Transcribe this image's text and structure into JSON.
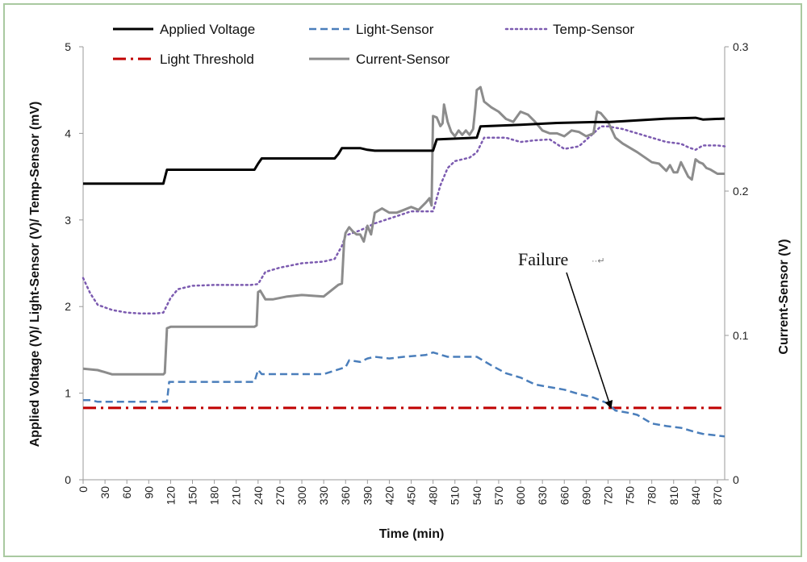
{
  "chart_data": {
    "type": "line",
    "title": "",
    "xlabel": "Time (min)",
    "ylabel_left": "Applied Voltage (V)/ Light-Sensor (V)/ Temp-Sensor (mV)",
    "ylabel_right": "Current-Sensor (V)",
    "xlim": [
      0,
      880
    ],
    "ylim_left": [
      0,
      5
    ],
    "ylim_right": [
      0,
      0.3
    ],
    "x_ticks": [
      "0",
      "30",
      "60",
      "90",
      "120",
      "150",
      "180",
      "210",
      "240",
      "270",
      "300",
      "330",
      "360",
      "390",
      "420",
      "450",
      "480",
      "510",
      "540",
      "570",
      "600",
      "630",
      "660",
      "690",
      "720",
      "750",
      "780",
      "810",
      "840",
      "870"
    ],
    "y_ticks_left": [
      "0",
      "1",
      "2",
      "3",
      "4",
      "5"
    ],
    "y_ticks_right": [
      "0",
      "0.1",
      "0.2",
      "0.3"
    ],
    "legend": [
      "Applied Voltage",
      "Light-Sensor",
      "Temp-Sensor",
      "Light Threshold",
      "Current-Sensor"
    ],
    "series": [
      {
        "name": "Applied Voltage",
        "axis": "left",
        "color": "#000000",
        "style": "solid",
        "x": [
          0,
          110,
          115,
          120,
          235,
          240,
          245,
          250,
          345,
          350,
          355,
          360,
          380,
          390,
          400,
          480,
          485,
          540,
          545,
          600,
          650,
          700,
          720,
          740,
          800,
          840,
          850,
          880
        ],
        "y": [
          3.42,
          3.42,
          3.58,
          3.58,
          3.58,
          3.65,
          3.71,
          3.71,
          3.71,
          3.76,
          3.83,
          3.83,
          3.83,
          3.81,
          3.8,
          3.8,
          3.93,
          3.95,
          4.08,
          4.1,
          4.12,
          4.13,
          4.13,
          4.14,
          4.17,
          4.18,
          4.16,
          4.17
        ]
      },
      {
        "name": "Light-Sensor",
        "axis": "left",
        "color": "#4a7ebb",
        "style": "dashed",
        "x": [
          0,
          10,
          20,
          115,
          118,
          130,
          235,
          240,
          245,
          260,
          300,
          330,
          360,
          365,
          380,
          390,
          400,
          420,
          440,
          470,
          480,
          500,
          540,
          560,
          580,
          600,
          620,
          640,
          660,
          680,
          700,
          720,
          730,
          750,
          760,
          770,
          780,
          800,
          820,
          840,
          850,
          870,
          880
        ],
        "y": [
          0.92,
          0.92,
          0.9,
          0.9,
          1.13,
          1.13,
          1.13,
          1.27,
          1.22,
          1.22,
          1.22,
          1.22,
          1.3,
          1.38,
          1.36,
          1.4,
          1.42,
          1.4,
          1.42,
          1.44,
          1.47,
          1.42,
          1.42,
          1.32,
          1.23,
          1.18,
          1.1,
          1.07,
          1.04,
          0.99,
          0.95,
          0.88,
          0.8,
          0.77,
          0.75,
          0.7,
          0.65,
          0.62,
          0.6,
          0.55,
          0.53,
          0.51,
          0.5
        ]
      },
      {
        "name": "Temp-Sensor",
        "axis": "left",
        "color": "#7c5bb0",
        "style": "dotted",
        "x": [
          0,
          10,
          20,
          40,
          60,
          80,
          100,
          110,
          120,
          130,
          150,
          180,
          200,
          230,
          240,
          250,
          270,
          300,
          330,
          345,
          355,
          360,
          380,
          400,
          450,
          480,
          490,
          500,
          510,
          530,
          540,
          550,
          580,
          600,
          620,
          640,
          660,
          680,
          700,
          710,
          720,
          740,
          760,
          780,
          800,
          820,
          830,
          840,
          850,
          870,
          880
        ],
        "y": [
          2.33,
          2.15,
          2.02,
          1.96,
          1.93,
          1.92,
          1.92,
          1.93,
          2.1,
          2.2,
          2.24,
          2.25,
          2.25,
          2.25,
          2.26,
          2.4,
          2.45,
          2.5,
          2.52,
          2.55,
          2.7,
          2.82,
          2.88,
          2.96,
          3.1,
          3.1,
          3.4,
          3.6,
          3.68,
          3.72,
          3.78,
          3.95,
          3.95,
          3.9,
          3.92,
          3.93,
          3.82,
          3.85,
          4.0,
          4.08,
          4.08,
          4.05,
          4.0,
          3.95,
          3.9,
          3.88,
          3.84,
          3.81,
          3.86,
          3.86,
          3.85
        ]
      },
      {
        "name": "Light Threshold",
        "axis": "left",
        "color": "#c00000",
        "style": "dashdot",
        "x": [
          0,
          880
        ],
        "y": [
          0.83,
          0.83
        ]
      },
      {
        "name": "Current-Sensor",
        "axis": "right",
        "color": "#8c8c8c",
        "style": "solid",
        "x": [
          0,
          20,
          40,
          60,
          80,
          100,
          110,
          112,
          115,
          120,
          150,
          180,
          210,
          230,
          235,
          238,
          240,
          243,
          250,
          260,
          280,
          300,
          330,
          350,
          355,
          358,
          360,
          365,
          370,
          375,
          380,
          385,
          390,
          395,
          400,
          410,
          420,
          430,
          440,
          450,
          460,
          470,
          475,
          478,
          480,
          485,
          490,
          493,
          495,
          500,
          505,
          510,
          515,
          520,
          525,
          530,
          535,
          538,
          540,
          545,
          550,
          560,
          570,
          580,
          590,
          600,
          610,
          620,
          630,
          640,
          650,
          660,
          670,
          680,
          690,
          700,
          705,
          710,
          720,
          730,
          740,
          760,
          780,
          790,
          800,
          805,
          810,
          815,
          820,
          825,
          830,
          835,
          840,
          845,
          850,
          855,
          860,
          870,
          880
        ],
        "y": [
          0.077,
          0.076,
          0.073,
          0.073,
          0.073,
          0.073,
          0.073,
          0.074,
          0.105,
          0.106,
          0.106,
          0.106,
          0.106,
          0.106,
          0.106,
          0.107,
          0.13,
          0.131,
          0.125,
          0.125,
          0.127,
          0.128,
          0.127,
          0.135,
          0.136,
          0.165,
          0.171,
          0.175,
          0.172,
          0.17,
          0.17,
          0.165,
          0.176,
          0.17,
          0.185,
          0.188,
          0.185,
          0.185,
          0.187,
          0.189,
          0.187,
          0.192,
          0.195,
          0.19,
          0.252,
          0.251,
          0.245,
          0.247,
          0.26,
          0.248,
          0.241,
          0.238,
          0.242,
          0.239,
          0.242,
          0.239,
          0.243,
          0.258,
          0.27,
          0.272,
          0.262,
          0.258,
          0.255,
          0.25,
          0.248,
          0.255,
          0.253,
          0.248,
          0.242,
          0.24,
          0.24,
          0.238,
          0.242,
          0.241,
          0.238,
          0.24,
          0.255,
          0.254,
          0.248,
          0.237,
          0.233,
          0.227,
          0.22,
          0.219,
          0.214,
          0.218,
          0.213,
          0.213,
          0.22,
          0.215,
          0.21,
          0.208,
          0.222,
          0.22,
          0.219,
          0.216,
          0.215,
          0.212,
          0.212
        ]
      }
    ],
    "annotations": [
      {
        "text": "Failure",
        "suffix": "··↵",
        "target_x": 723,
        "target_y": 0.8
      }
    ]
  }
}
